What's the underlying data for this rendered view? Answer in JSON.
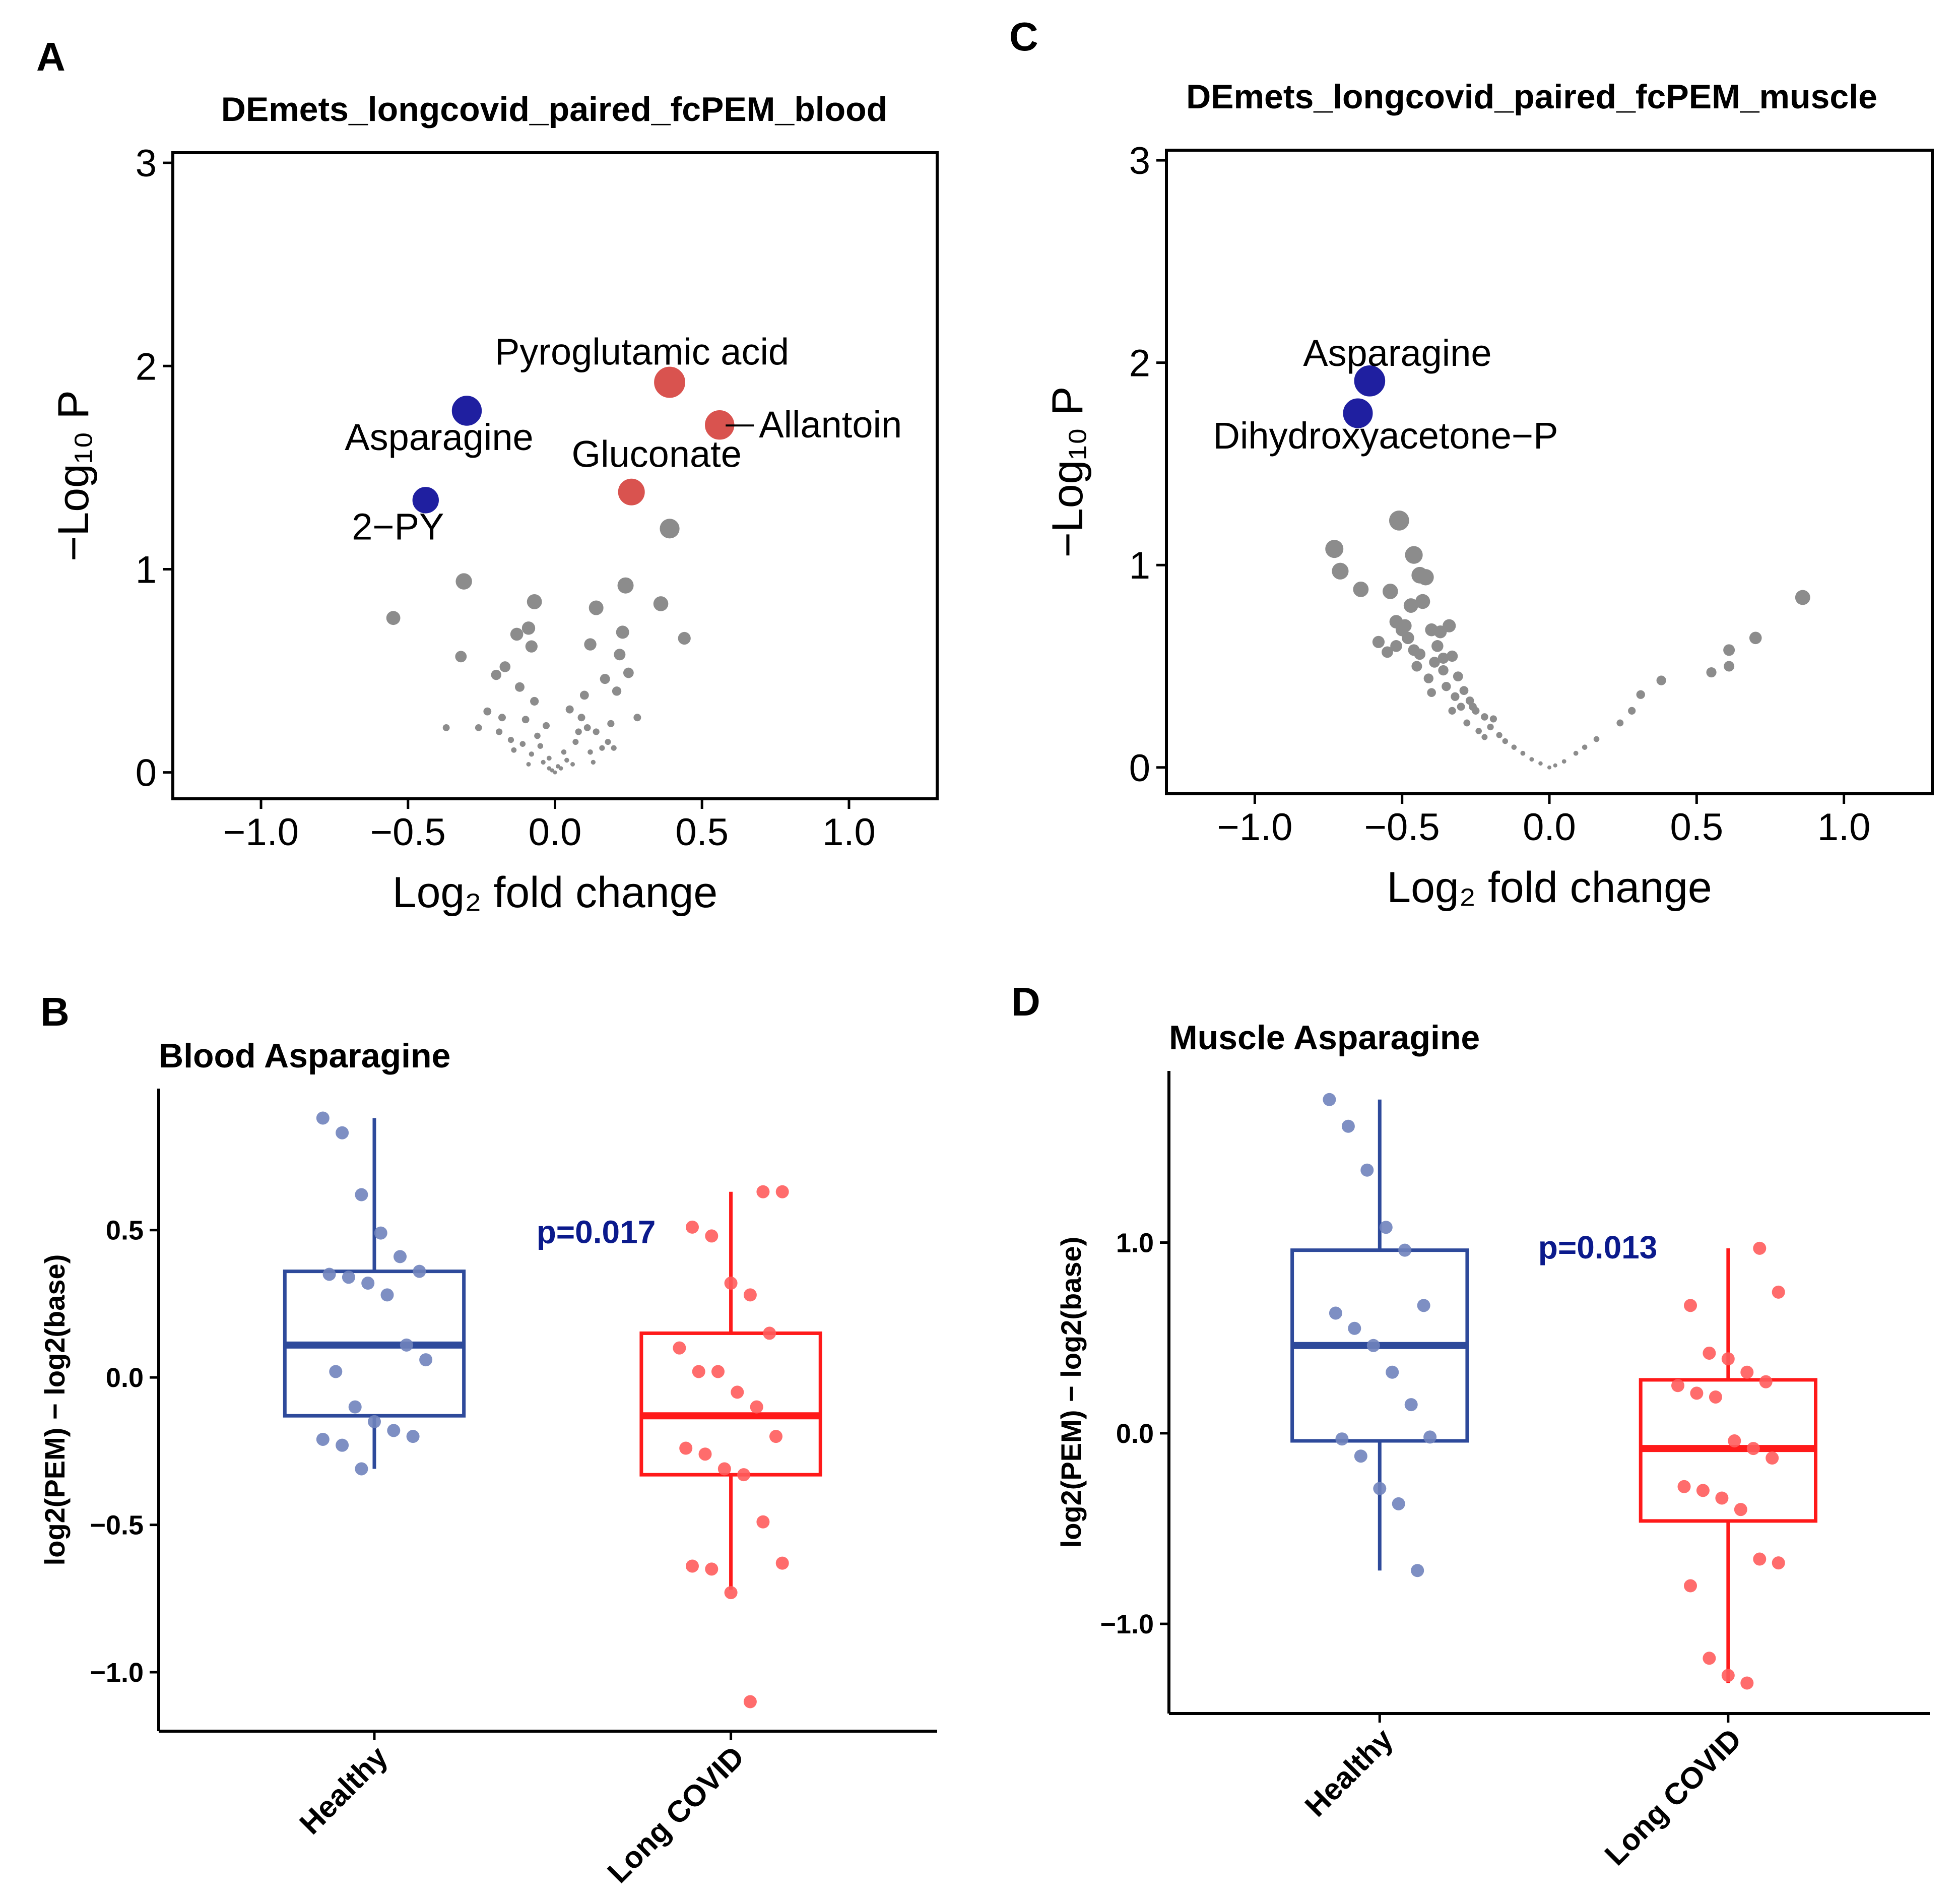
{
  "colors": {
    "up": "#d9534f",
    "down": "#1f1fa0",
    "ns": "#8c8c8c",
    "healthy": "#2e4a9b",
    "healthy_pts": "#7083bd",
    "covid": "#ff1a1a",
    "covid_pts": "#ff5c5c",
    "pval": "#0b1a8c"
  },
  "chart_data": [
    {
      "id": "A",
      "letter": "A",
      "type": "scatter",
      "subtype": "volcano",
      "title": "DEmets_longcovid_paired_fcPEM_blood",
      "xlabel": "Log₂ fold change",
      "ylabel": "−Log₁₀ P",
      "xlim": [
        -1.3,
        1.3
      ],
      "ylim": [
        -0.13,
        3.05
      ],
      "xticks": [
        -1.0,
        -0.5,
        0.0,
        0.5,
        1.0
      ],
      "xtick_labels": [
        "−1.0",
        "−0.5",
        "0.0",
        "0.5",
        "1.0"
      ],
      "yticks": [
        0,
        1,
        2,
        3
      ],
      "ytick_labels": [
        "0",
        "1",
        "2",
        "3"
      ],
      "grid": false,
      "highlighted": [
        {
          "label": "Pyroglutamic acid",
          "x": 0.39,
          "y": 1.92,
          "group": "up"
        },
        {
          "label": "Allantoin",
          "x": 0.56,
          "y": 1.71,
          "group": "up"
        },
        {
          "label": "Gluconate",
          "x": 0.26,
          "y": 1.38,
          "group": "up"
        },
        {
          "label": "Asparagine",
          "x": -0.3,
          "y": 1.78,
          "group": "down"
        },
        {
          "label": "2−PY",
          "x": -0.44,
          "y": 1.34,
          "group": "down"
        }
      ],
      "points": [
        [
          0.39,
          1.2
        ],
        [
          -0.31,
          0.94
        ],
        [
          -0.55,
          0.76
        ],
        [
          0.24,
          0.92
        ],
        [
          0.36,
          0.83
        ],
        [
          -0.07,
          0.84
        ],
        [
          0.14,
          0.81
        ],
        [
          -0.09,
          0.71
        ],
        [
          -0.13,
          0.68
        ],
        [
          0.44,
          0.66
        ],
        [
          0.23,
          0.69
        ],
        [
          0.12,
          0.63
        ],
        [
          -0.08,
          0.62
        ],
        [
          0.22,
          0.58
        ],
        [
          -0.32,
          0.57
        ],
        [
          0.25,
          0.49
        ],
        [
          0.17,
          0.46
        ],
        [
          0.21,
          0.4
        ],
        [
          -0.2,
          0.48
        ],
        [
          -0.12,
          0.42
        ],
        [
          -0.17,
          0.52
        ],
        [
          0.1,
          0.38
        ],
        [
          -0.07,
          0.35
        ],
        [
          -0.23,
          0.3
        ],
        [
          0.05,
          0.31
        ],
        [
          0.09,
          0.27
        ],
        [
          -0.03,
          0.23
        ],
        [
          0.14,
          0.2
        ],
        [
          -0.1,
          0.26
        ],
        [
          -0.18,
          0.27
        ],
        [
          0.07,
          0.15
        ],
        [
          -0.05,
          0.13
        ],
        [
          0.03,
          0.1
        ],
        [
          -0.02,
          0.07
        ],
        [
          0.01,
          0.03
        ],
        [
          0.02,
          0.02
        ],
        [
          -0.01,
          0.01
        ],
        [
          0.16,
          0.12
        ],
        [
          -0.15,
          0.16
        ],
        [
          0.19,
          0.24
        ],
        [
          -0.26,
          0.22
        ],
        [
          0.28,
          0.27
        ],
        [
          -0.37,
          0.22
        ],
        [
          0.12,
          0.1
        ],
        [
          -0.08,
          0.09
        ],
        [
          0.04,
          0.06
        ],
        [
          -0.04,
          0.05
        ],
        [
          0.06,
          0.04
        ],
        [
          -0.14,
          0.11
        ],
        [
          0.11,
          0.22
        ],
        [
          -0.06,
          0.18
        ],
        [
          0.08,
          0.2
        ],
        [
          -0.11,
          0.14
        ],
        [
          0.18,
          0.15
        ],
        [
          -0.19,
          0.2
        ],
        [
          0.13,
          0.05
        ],
        [
          -0.09,
          0.04
        ],
        [
          0.0,
          0.0
        ],
        [
          -0.02,
          0.02
        ],
        [
          0.2,
          0.12
        ]
      ]
    },
    {
      "id": "C",
      "letter": "C",
      "type": "scatter",
      "subtype": "volcano",
      "title": "DEmets_longcovid_paired_fcPEM_muscle",
      "xlabel": "Log₂ fold change",
      "ylabel": "−Log₁₀ P",
      "xlim": [
        -1.3,
        1.3
      ],
      "ylim": [
        -0.13,
        3.05
      ],
      "xticks": [
        -1.0,
        -0.5,
        0.0,
        0.5,
        1.0
      ],
      "xtick_labels": [
        "−1.0",
        "−0.5",
        "0.0",
        "0.5",
        "1.0"
      ],
      "yticks": [
        0,
        1,
        2,
        3
      ],
      "ytick_labels": [
        "0",
        "1",
        "2",
        "3"
      ],
      "grid": false,
      "highlighted": [
        {
          "label": "Asparagine",
          "x": -0.61,
          "y": 1.91,
          "group": "down"
        },
        {
          "label": "Dihydroxyacetone−P",
          "x": -0.65,
          "y": 1.75,
          "group": "down"
        }
      ],
      "points": [
        [
          -0.51,
          1.22
        ],
        [
          -0.73,
          1.08
        ],
        [
          -0.71,
          0.97
        ],
        [
          -0.46,
          1.05
        ],
        [
          -0.44,
          0.95
        ],
        [
          -0.42,
          0.94
        ],
        [
          -0.64,
          0.88
        ],
        [
          -0.54,
          0.87
        ],
        [
          -0.47,
          0.8
        ],
        [
          -0.43,
          0.82
        ],
        [
          -0.52,
          0.72
        ],
        [
          -0.49,
          0.7
        ],
        [
          -0.5,
          0.68
        ],
        [
          -0.48,
          0.64
        ],
        [
          -0.52,
          0.6
        ],
        [
          -0.4,
          0.68
        ],
        [
          -0.37,
          0.67
        ],
        [
          -0.34,
          0.7
        ],
        [
          -0.38,
          0.6
        ],
        [
          -0.46,
          0.58
        ],
        [
          -0.44,
          0.56
        ],
        [
          -0.55,
          0.57
        ],
        [
          -0.39,
          0.52
        ],
        [
          -0.33,
          0.55
        ],
        [
          -0.36,
          0.48
        ],
        [
          -0.41,
          0.44
        ],
        [
          -0.31,
          0.45
        ],
        [
          -0.35,
          0.4
        ],
        [
          -0.29,
          0.38
        ],
        [
          -0.32,
          0.35
        ],
        [
          -0.27,
          0.33
        ],
        [
          -0.3,
          0.3
        ],
        [
          -0.25,
          0.28
        ],
        [
          -0.22,
          0.25
        ],
        [
          -0.28,
          0.22
        ],
        [
          -0.2,
          0.2
        ],
        [
          -0.17,
          0.16
        ],
        [
          -0.15,
          0.13
        ],
        [
          -0.12,
          0.1
        ],
        [
          -0.09,
          0.07
        ],
        [
          -0.06,
          0.04
        ],
        [
          -0.03,
          0.02
        ],
        [
          0.0,
          0.0
        ],
        [
          0.02,
          0.01
        ],
        [
          0.05,
          0.03
        ],
        [
          0.09,
          0.07
        ],
        [
          0.12,
          0.1
        ],
        [
          0.16,
          0.14
        ],
        [
          0.24,
          0.22
        ],
        [
          0.28,
          0.28
        ],
        [
          0.31,
          0.36
        ],
        [
          0.38,
          0.43
        ],
        [
          0.55,
          0.47
        ],
        [
          0.61,
          0.5
        ],
        [
          0.61,
          0.58
        ],
        [
          0.7,
          0.64
        ],
        [
          0.86,
          0.84
        ],
        [
          -0.24,
          0.18
        ],
        [
          -0.26,
          0.3
        ],
        [
          -0.19,
          0.24
        ],
        [
          -0.22,
          0.15
        ],
        [
          -0.33,
          0.28
        ],
        [
          -0.4,
          0.37
        ],
        [
          -0.45,
          0.5
        ],
        [
          -0.58,
          0.62
        ],
        [
          -0.36,
          0.54
        ]
      ]
    },
    {
      "id": "B",
      "letter": "B",
      "type": "box",
      "title": "Blood Asparagine",
      "xlabel": "",
      "ylabel": "log2(PEM) − log2(base)",
      "categories": [
        "Healthy",
        "Long COVID"
      ],
      "ylim": [
        -1.2,
        0.98
      ],
      "yticks": [
        -1.0,
        -0.5,
        0.0,
        0.5
      ],
      "ytick_labels": [
        "−1.0",
        "−0.5",
        "0.0",
        "0.5"
      ],
      "annotation": "p=0.017",
      "boxes": [
        {
          "q1": -0.13,
          "median": 0.11,
          "q3": 0.36,
          "whisker_low": -0.31,
          "whisker_high": 0.88
        },
        {
          "q1": -0.33,
          "median": -0.13,
          "q3": 0.15,
          "whisker_low": -0.72,
          "whisker_high": 0.63
        }
      ],
      "points": [
        [
          0.88,
          0.83,
          0.62,
          0.49,
          0.41,
          0.36,
          0.35,
          0.34,
          0.32,
          0.28,
          0.11,
          0.06,
          0.02,
          -0.1,
          -0.15,
          -0.18,
          -0.2,
          -0.21,
          -0.23,
          -0.31
        ],
        [
          0.63,
          0.63,
          0.51,
          0.48,
          0.32,
          0.28,
          0.15,
          0.1,
          0.02,
          0.02,
          -0.05,
          -0.1,
          -0.2,
          -0.24,
          -0.26,
          -0.31,
          -0.33,
          -0.49,
          -0.63,
          -0.64,
          -0.65,
          -0.73,
          -1.1
        ]
      ]
    },
    {
      "id": "D",
      "letter": "D",
      "type": "box",
      "title": "Muscle Asparagine",
      "xlabel": "",
      "ylabel": "log2(PEM) − log2(base)",
      "categories": [
        "Healthy",
        "Long COVID"
      ],
      "ylim": [
        -1.47,
        1.9
      ],
      "yticks": [
        -1.0,
        0.0,
        1.0
      ],
      "ytick_labels": [
        "−1.0",
        "0.0",
        "1.0"
      ],
      "annotation": "p=0.013",
      "boxes": [
        {
          "q1": -0.04,
          "median": 0.46,
          "q3": 0.96,
          "whisker_low": -0.72,
          "whisker_high": 1.75
        },
        {
          "q1": -0.46,
          "median": -0.08,
          "q3": 0.28,
          "whisker_low": -1.31,
          "whisker_high": 0.97
        }
      ],
      "points": [
        [
          1.75,
          1.61,
          1.38,
          1.08,
          0.96,
          0.67,
          0.63,
          0.55,
          0.46,
          0.32,
          0.15,
          -0.02,
          -0.03,
          -0.12,
          -0.29,
          -0.37,
          -0.72
        ],
        [
          0.97,
          0.74,
          0.67,
          0.42,
          0.39,
          0.32,
          0.27,
          0.25,
          0.21,
          0.19,
          -0.04,
          -0.08,
          -0.13,
          -0.28,
          -0.3,
          -0.34,
          -0.4,
          -0.66,
          -0.68,
          -0.8,
          -1.18,
          -1.27,
          -1.31
        ]
      ]
    }
  ]
}
